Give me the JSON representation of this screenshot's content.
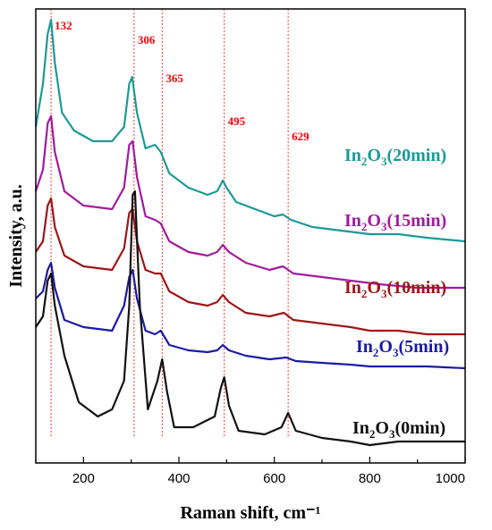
{
  "chart_data": {
    "type": "line",
    "xlabel": "Raman shift, cm⁻¹",
    "ylabel": "Intensity, a.u.",
    "xlim": [
      100,
      1000
    ],
    "xticks": [
      200,
      400,
      600,
      800,
      1000
    ],
    "y_ticks_shown": false,
    "peaks": [
      {
        "x": 132,
        "label": "132"
      },
      {
        "x": 306,
        "label": "306"
      },
      {
        "x": 365,
        "label": "365"
      },
      {
        "x": 495,
        "label": "495"
      },
      {
        "x": 629,
        "label": "629"
      }
    ],
    "series": [
      {
        "name": "In2O3(20min)",
        "label_main": "In",
        "label_sub": "2",
        "label_mid": "O",
        "label_sub2": "3",
        "label_rest": "(20min)",
        "color": "#1a9a96",
        "points": [
          [
            100,
            0.7
          ],
          [
            115,
            0.82
          ],
          [
            125,
            0.96
          ],
          [
            132,
            1.0
          ],
          [
            140,
            0.88
          ],
          [
            155,
            0.74
          ],
          [
            180,
            0.69
          ],
          [
            220,
            0.66
          ],
          [
            260,
            0.66
          ],
          [
            285,
            0.7
          ],
          [
            296,
            0.82
          ],
          [
            302,
            0.84
          ],
          [
            312,
            0.74
          ],
          [
            330,
            0.64
          ],
          [
            350,
            0.65
          ],
          [
            362,
            0.63
          ],
          [
            380,
            0.57
          ],
          [
            420,
            0.53
          ],
          [
            460,
            0.51
          ],
          [
            480,
            0.52
          ],
          [
            492,
            0.55
          ],
          [
            500,
            0.53
          ],
          [
            520,
            0.49
          ],
          [
            560,
            0.47
          ],
          [
            600,
            0.45
          ],
          [
            618,
            0.455
          ],
          [
            635,
            0.44
          ],
          [
            680,
            0.42
          ],
          [
            740,
            0.41
          ],
          [
            800,
            0.4
          ],
          [
            860,
            0.4
          ],
          [
            920,
            0.39
          ],
          [
            1000,
            0.38
          ]
        ]
      },
      {
        "name": "In2O3(15min)",
        "label_main": "In",
        "label_sub": "2",
        "label_mid": "O",
        "label_sub2": "3",
        "label_rest": "(15min)",
        "color": "#a21a9e",
        "points": [
          [
            100,
            0.52
          ],
          [
            115,
            0.58
          ],
          [
            125,
            0.71
          ],
          [
            132,
            0.73
          ],
          [
            140,
            0.63
          ],
          [
            160,
            0.52
          ],
          [
            200,
            0.48
          ],
          [
            260,
            0.47
          ],
          [
            285,
            0.53
          ],
          [
            296,
            0.65
          ],
          [
            303,
            0.66
          ],
          [
            312,
            0.56
          ],
          [
            330,
            0.45
          ],
          [
            350,
            0.44
          ],
          [
            362,
            0.43
          ],
          [
            380,
            0.38
          ],
          [
            420,
            0.35
          ],
          [
            460,
            0.34
          ],
          [
            480,
            0.35
          ],
          [
            492,
            0.37
          ],
          [
            505,
            0.35
          ],
          [
            540,
            0.32
          ],
          [
            590,
            0.3
          ],
          [
            618,
            0.31
          ],
          [
            640,
            0.29
          ],
          [
            700,
            0.28
          ],
          [
            760,
            0.27
          ],
          [
            820,
            0.26
          ],
          [
            900,
            0.25
          ],
          [
            1000,
            0.25
          ]
        ]
      },
      {
        "name": "In2O3(10min)",
        "label_main": "In",
        "label_sub": "2",
        "label_mid": "O",
        "label_sub2": "3",
        "label_rest": "(10min)",
        "color": "#9e1616",
        "points": [
          [
            100,
            0.35
          ],
          [
            115,
            0.38
          ],
          [
            125,
            0.48
          ],
          [
            132,
            0.5
          ],
          [
            140,
            0.42
          ],
          [
            160,
            0.34
          ],
          [
            200,
            0.31
          ],
          [
            260,
            0.3
          ],
          [
            285,
            0.36
          ],
          [
            296,
            0.46
          ],
          [
            303,
            0.47
          ],
          [
            312,
            0.38
          ],
          [
            330,
            0.3
          ],
          [
            350,
            0.29
          ],
          [
            362,
            0.29
          ],
          [
            380,
            0.24
          ],
          [
            420,
            0.21
          ],
          [
            460,
            0.2
          ],
          [
            480,
            0.21
          ],
          [
            492,
            0.23
          ],
          [
            505,
            0.21
          ],
          [
            540,
            0.18
          ],
          [
            590,
            0.17
          ],
          [
            620,
            0.18
          ],
          [
            640,
            0.16
          ],
          [
            700,
            0.15
          ],
          [
            760,
            0.14
          ],
          [
            800,
            0.13
          ],
          [
            860,
            0.13
          ],
          [
            920,
            0.12
          ],
          [
            1000,
            0.12
          ]
        ]
      },
      {
        "name": "In2O3(5min)",
        "label_main": "In",
        "label_sub": "2",
        "label_mid": "O",
        "label_sub2": "3",
        "label_rest": "(5min)",
        "color": "#1a1aa6",
        "points": [
          [
            100,
            0.22
          ],
          [
            115,
            0.24
          ],
          [
            125,
            0.3
          ],
          [
            132,
            0.32
          ],
          [
            140,
            0.25
          ],
          [
            160,
            0.16
          ],
          [
            200,
            0.14
          ],
          [
            260,
            0.13
          ],
          [
            285,
            0.2
          ],
          [
            296,
            0.28
          ],
          [
            303,
            0.3
          ],
          [
            312,
            0.22
          ],
          [
            330,
            0.13
          ],
          [
            350,
            0.12
          ],
          [
            362,
            0.13
          ],
          [
            380,
            0.09
          ],
          [
            420,
            0.075
          ],
          [
            460,
            0.07
          ],
          [
            480,
            0.075
          ],
          [
            492,
            0.09
          ],
          [
            505,
            0.075
          ],
          [
            540,
            0.06
          ],
          [
            590,
            0.05
          ],
          [
            625,
            0.055
          ],
          [
            645,
            0.045
          ],
          [
            700,
            0.04
          ],
          [
            760,
            0.035
          ],
          [
            800,
            0.03
          ],
          [
            860,
            0.03
          ],
          [
            920,
            0.03
          ],
          [
            1000,
            0.025
          ]
        ]
      },
      {
        "name": "In2O3(0min)",
        "label_main": "In",
        "label_sub": "2",
        "label_mid": "O",
        "label_sub2": "3",
        "label_rest": "(0min)",
        "color": "#111111",
        "points": [
          [
            100,
            0.14
          ],
          [
            115,
            0.17
          ],
          [
            125,
            0.27
          ],
          [
            132,
            0.29
          ],
          [
            140,
            0.2
          ],
          [
            160,
            0.06
          ],
          [
            190,
            -0.07
          ],
          [
            230,
            -0.11
          ],
          [
            260,
            -0.09
          ],
          [
            285,
            -0.01
          ],
          [
            296,
            0.2
          ],
          [
            303,
            0.51
          ],
          [
            308,
            0.52
          ],
          [
            318,
            0.2
          ],
          [
            335,
            -0.09
          ],
          [
            355,
            -0.01
          ],
          [
            365,
            0.05
          ],
          [
            375,
            -0.04
          ],
          [
            390,
            -0.14
          ],
          [
            430,
            -0.14
          ],
          [
            475,
            -0.11
          ],
          [
            488,
            -0.03
          ],
          [
            495,
            0.0
          ],
          [
            505,
            -0.08
          ],
          [
            525,
            -0.15
          ],
          [
            580,
            -0.16
          ],
          [
            615,
            -0.14
          ],
          [
            629,
            -0.1
          ],
          [
            645,
            -0.15
          ],
          [
            700,
            -0.17
          ],
          [
            760,
            -0.18
          ],
          [
            800,
            -0.19
          ],
          [
            860,
            -0.18
          ],
          [
            920,
            -0.18
          ],
          [
            1000,
            -0.18
          ]
        ]
      }
    ]
  }
}
